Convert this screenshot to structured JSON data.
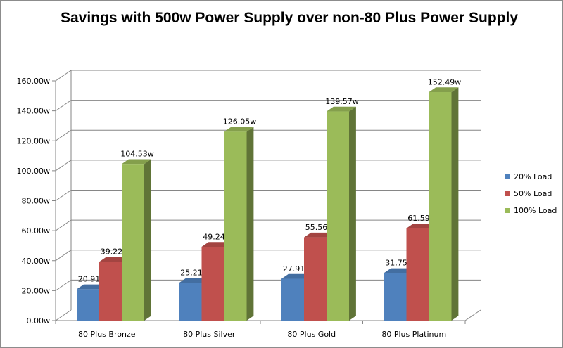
{
  "chart_data": {
    "type": "bar",
    "title": "Savings with 500w Power Supply over non-80 Plus Power Supply",
    "xlabel": "",
    "ylabel": "",
    "categories": [
      "80 Plus Bronze",
      "80 Plus Silver",
      "80 Plus Gold",
      "80 Plus Platinum"
    ],
    "series": [
      {
        "name": "20% Load",
        "values": [
          20.91,
          25.21,
          27.91,
          31.75
        ],
        "labels": [
          "20.91w",
          "25.21w",
          "27.91w",
          "31.75w"
        ],
        "color": "#4F81BD"
      },
      {
        "name": "50% Load",
        "values": [
          39.22,
          49.24,
          55.56,
          61.59
        ],
        "labels": [
          "39.22w",
          "49.24w",
          "55.56w",
          "61.59w"
        ],
        "color": "#C0504D"
      },
      {
        "name": "100% Load",
        "values": [
          104.53,
          126.05,
          139.57,
          152.49
        ],
        "labels": [
          "104.53w",
          "126.05w",
          "139.57w",
          "152.49w"
        ],
        "color": "#9BBB59"
      }
    ],
    "yticks": [
      "0.00w",
      "20.00w",
      "40.00w",
      "60.00w",
      "80.00w",
      "100.00w",
      "120.00w",
      "140.00w",
      "160.00w"
    ],
    "ylim": [
      0,
      160
    ],
    "grid": true,
    "legend": "right",
    "style": "3d-clustered-column"
  }
}
